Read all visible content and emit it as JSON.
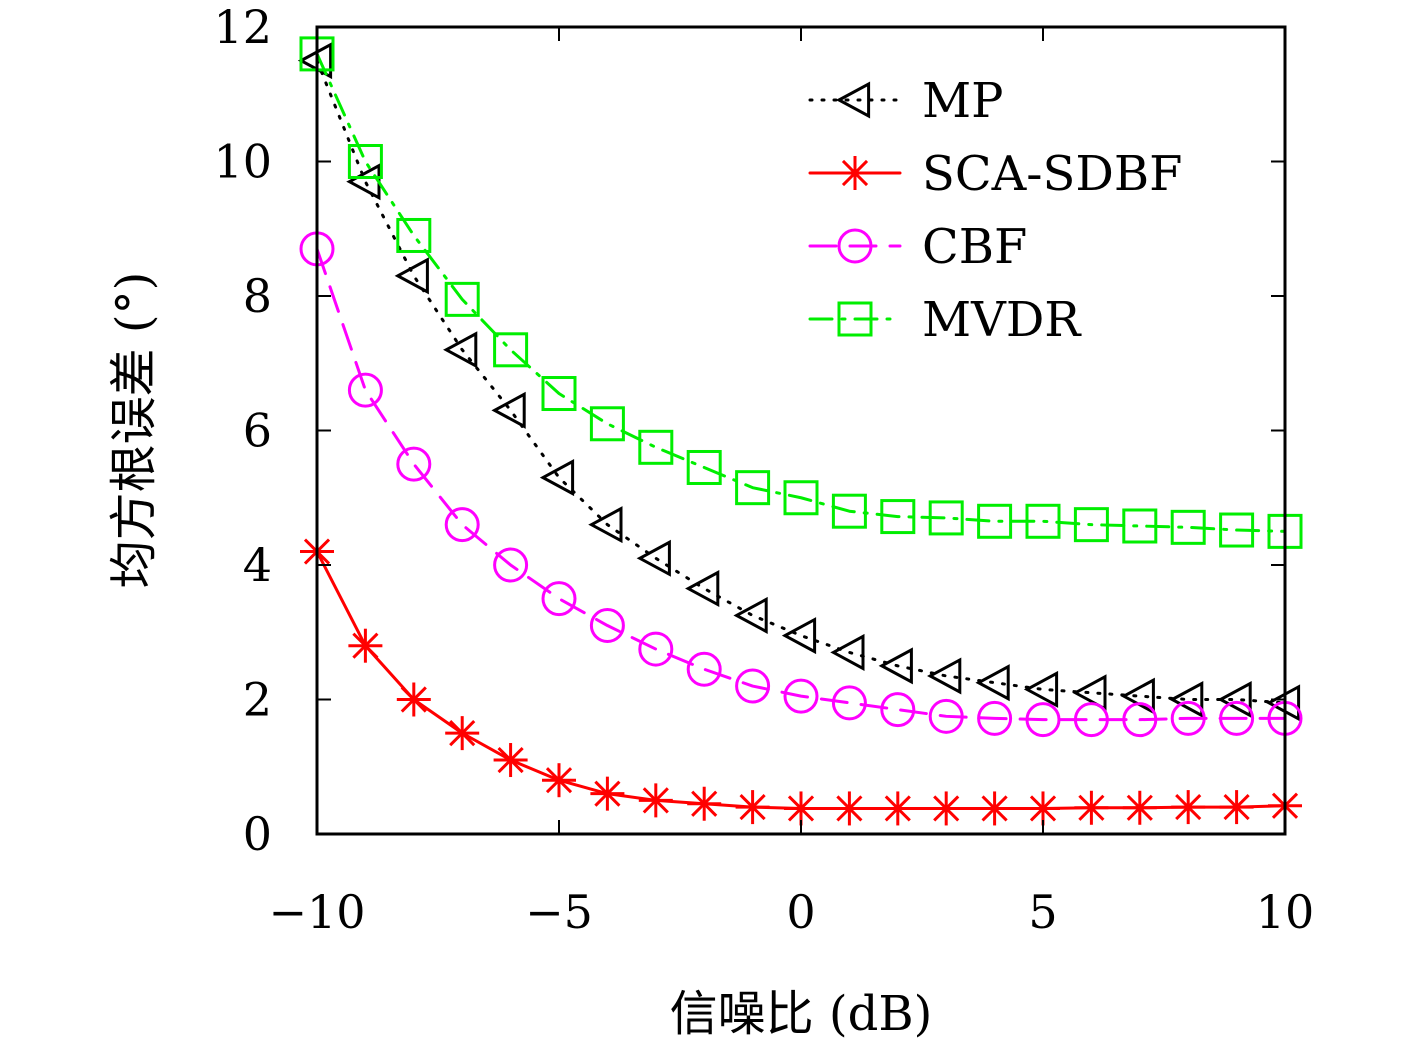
{
  "chart_data": {
    "type": "line",
    "xlabel": "信噪比 (dB)",
    "ylabel": "均方根误差 (°)",
    "xlim": [
      -10,
      10
    ],
    "ylim": [
      0,
      12
    ],
    "x_ticks": [
      -10,
      -5,
      0,
      5,
      10
    ],
    "x_tick_labels": [
      "−10",
      "−5",
      "0",
      "5",
      "10"
    ],
    "y_ticks": [
      0,
      2,
      4,
      6,
      8,
      10,
      12
    ],
    "y_tick_labels": [
      "0",
      "2",
      "4",
      "6",
      "8",
      "10",
      "12"
    ],
    "grid": false,
    "legend_position": "top-right",
    "x": [
      -10,
      -9,
      -8,
      -7,
      -6,
      -5,
      -4,
      -3,
      -2,
      -1,
      0,
      1,
      2,
      3,
      4,
      5,
      6,
      7,
      8,
      9,
      10
    ],
    "series": [
      {
        "name": "MP",
        "color": "#000000",
        "marker": "triangle-left",
        "line_style": "dotted",
        "values": [
          11.5,
          9.7,
          8.3,
          7.2,
          6.3,
          5.3,
          4.6,
          4.1,
          3.65,
          3.25,
          2.95,
          2.7,
          2.5,
          2.35,
          2.25,
          2.15,
          2.1,
          2.05,
          2.0,
          2.0,
          1.95
        ]
      },
      {
        "name": "SCA-SDBF",
        "color": "#ff0000",
        "marker": "asterisk",
        "line_style": "solid",
        "values": [
          4.2,
          2.8,
          2.0,
          1.5,
          1.1,
          0.8,
          0.6,
          0.5,
          0.45,
          0.4,
          0.38,
          0.38,
          0.38,
          0.38,
          0.38,
          0.38,
          0.39,
          0.39,
          0.4,
          0.4,
          0.42
        ]
      },
      {
        "name": "CBF",
        "color": "#ff00ff",
        "marker": "circle",
        "line_style": "dashed",
        "values": [
          8.7,
          6.6,
          5.5,
          4.6,
          4.0,
          3.5,
          3.1,
          2.75,
          2.45,
          2.2,
          2.05,
          1.95,
          1.85,
          1.75,
          1.72,
          1.7,
          1.7,
          1.7,
          1.72,
          1.72,
          1.72
        ]
      },
      {
        "name": "MVDR",
        "color": "#00ee00",
        "marker": "square",
        "line_style": "dashdot",
        "values": [
          11.6,
          10.0,
          8.9,
          7.95,
          7.2,
          6.55,
          6.1,
          5.75,
          5.45,
          5.15,
          5.0,
          4.8,
          4.72,
          4.7,
          4.65,
          4.65,
          4.6,
          4.58,
          4.56,
          4.52,
          4.5
        ]
      }
    ]
  }
}
